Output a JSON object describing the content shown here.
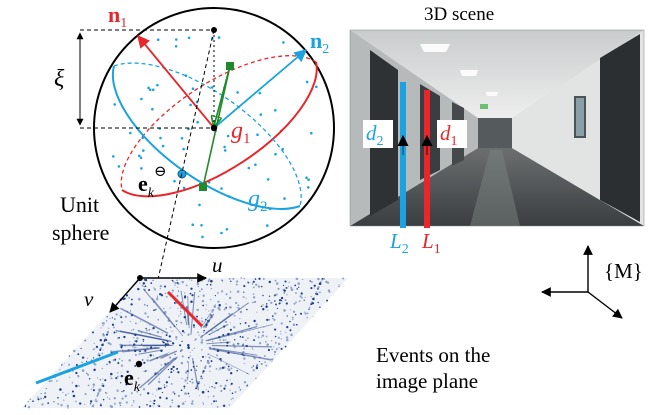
{
  "colors": {
    "red": "#e8262b",
    "blue": "#1aa3e0",
    "green": "#1f8a2b",
    "black": "#000000"
  },
  "sphere": {
    "label_line1": "Unit",
    "label_line2": "sphere",
    "n1_symbol": "n",
    "n1_sub": "1",
    "n2_symbol": "n",
    "n2_sub": "2",
    "xi": "ξ",
    "g1_symbol": "g",
    "g1_sub": "1",
    "g2_symbol": "g",
    "g2_sub": "2",
    "ek_sphere_symbol": "e",
    "ek_sphere_sub": "k",
    "ek_sphere_sup": "⊖"
  },
  "scene": {
    "title": "3D scene",
    "d2_symbol": "d",
    "d2_sub": "2",
    "d1_symbol": "d",
    "d1_sub": "1",
    "L2_symbol": "L",
    "L2_sub": "2",
    "L1_symbol": "L",
    "L1_sub": "1"
  },
  "frame": {
    "label": "{M}"
  },
  "image_plane": {
    "u_label": "u",
    "v_label": "v",
    "ek_symbol": "e",
    "ek_sub": "k",
    "caption_line1": "Events on the",
    "caption_line2": "image plane"
  }
}
